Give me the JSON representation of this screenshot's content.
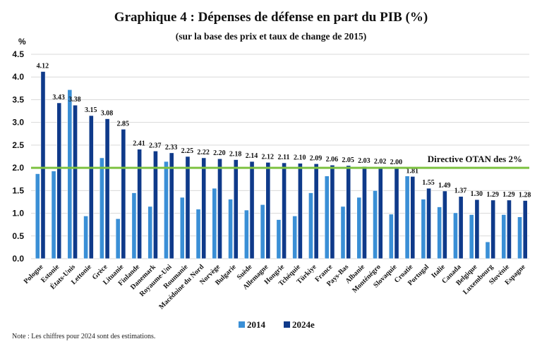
{
  "chart_data": {
    "type": "bar",
    "title": "Graphique 4 : Dépenses de défense en part du PIB (%)",
    "subtitle": "(sur la base des prix et taux de change de 2015)",
    "ylabel": "%",
    "xlabel": "",
    "ylim": [
      0,
      4.5
    ],
    "yticks": [
      "0.0",
      "0.5",
      "1.0",
      "1.5",
      "2.0",
      "2.5",
      "3.0",
      "3.5",
      "4.0",
      "4.5"
    ],
    "grid": true,
    "legend_position": "bottom-center",
    "categories": [
      "Pologne",
      "Estonie",
      "États-Unis",
      "Lettonie",
      "Grèce",
      "Lituanie",
      "Finlande",
      "Danemark",
      "Royaume-Uni",
      "Roumanie",
      "Macédoine du Nord",
      "Norvège",
      "Bulgarie",
      "Suède",
      "Allemagne",
      "Hongrie",
      "Tchéquie",
      "Türkiye",
      "France",
      "Pays-Bas",
      "Albanie",
      "Monténégro",
      "Slovaquie",
      "Croatie",
      "Portugal",
      "Italie",
      "Canada",
      "Belgique",
      "Luxembourg",
      "Slovénie",
      "Espagne"
    ],
    "series": [
      {
        "name": "2014",
        "color": "#3a8fd6",
        "values": [
          1.87,
          1.93,
          3.72,
          0.94,
          2.22,
          0.88,
          1.45,
          1.15,
          2.14,
          1.35,
          1.09,
          1.55,
          1.31,
          1.07,
          1.19,
          0.86,
          0.94,
          1.45,
          1.82,
          1.15,
          1.35,
          1.5,
          0.98,
          1.82,
          1.31,
          1.14,
          1.01,
          0.97,
          0.37,
          0.97,
          0.92
        ]
      },
      {
        "name": "2024e",
        "color": "#0f3a8a",
        "values": [
          4.12,
          3.43,
          3.38,
          3.15,
          3.08,
          2.85,
          2.41,
          2.37,
          2.33,
          2.25,
          2.22,
          2.2,
          2.18,
          2.14,
          2.12,
          2.11,
          2.1,
          2.09,
          2.06,
          2.05,
          2.03,
          2.02,
          2.0,
          1.81,
          1.55,
          1.49,
          1.37,
          1.3,
          1.29,
          1.29,
          1.28
        ],
        "labels": [
          "4.12",
          "3.43",
          "3.38",
          "3.15",
          "3.08",
          "2.85",
          "2.41",
          "2.37",
          "2.33",
          "2.25",
          "2.22",
          "2.20",
          "2.18",
          "2.14",
          "2.12",
          "2.11",
          "2.10",
          "2.09",
          "2.06",
          "2.05",
          "2.03",
          "2.02",
          "2.00",
          "1.81",
          "1.55",
          "1.49",
          "1.37",
          "1.30",
          "1.29",
          "1.29",
          "1.28"
        ]
      }
    ],
    "reference_line": {
      "value": 2.0,
      "label": "Directive OTAN des 2%",
      "color": "#7dc242"
    },
    "note": "Note : Les chiffres pour 2024 sont des estimations."
  }
}
